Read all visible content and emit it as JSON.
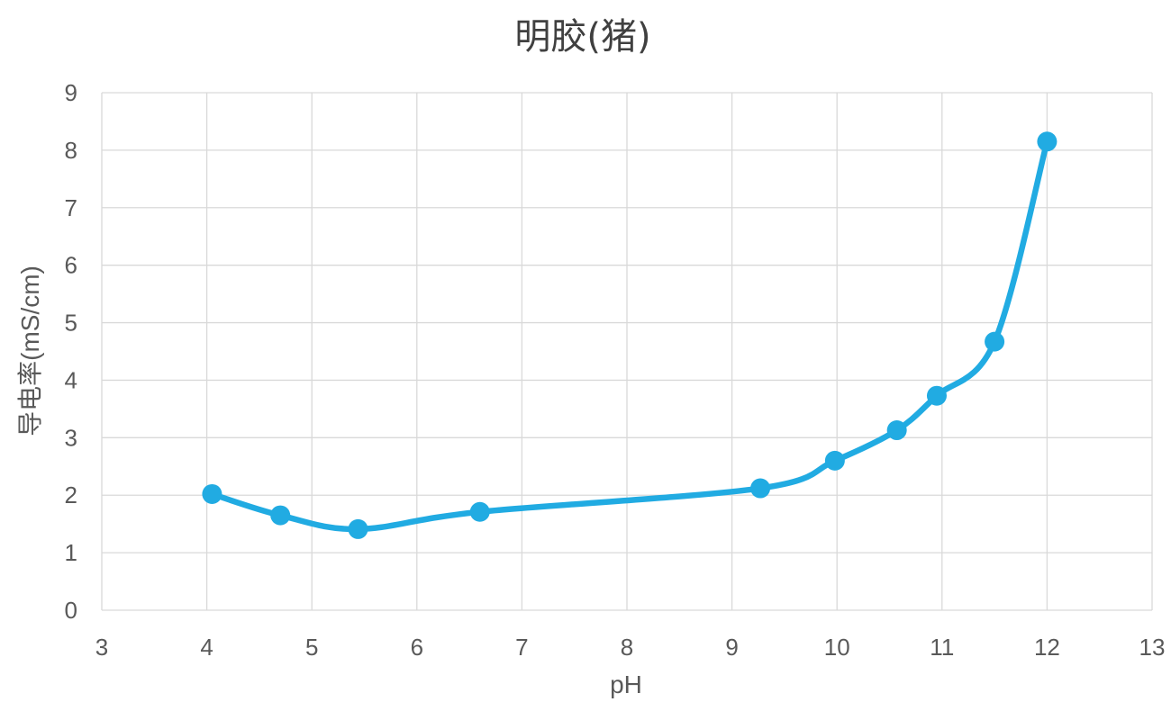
{
  "chart_data": {
    "type": "line",
    "title": "明胶(猪)",
    "xlabel": "pH",
    "ylabel": "导电率(mS/cm)",
    "xlim": [
      3,
      13
    ],
    "ylim": [
      0,
      9
    ],
    "x_ticks": [
      3,
      4,
      5,
      6,
      7,
      8,
      9,
      10,
      11,
      12,
      13
    ],
    "y_ticks": [
      0,
      1,
      2,
      3,
      4,
      5,
      6,
      7,
      8,
      9
    ],
    "grid": true,
    "smooth": true,
    "series": [
      {
        "color": "#21ABE2",
        "x": [
          4.05,
          4.7,
          5.44,
          6.6,
          9.27,
          9.98,
          10.57,
          10.95,
          11.5,
          12.0
        ],
        "y": [
          2.02,
          1.65,
          1.41,
          1.71,
          2.12,
          2.6,
          3.13,
          3.73,
          4.67,
          8.15
        ]
      }
    ]
  }
}
